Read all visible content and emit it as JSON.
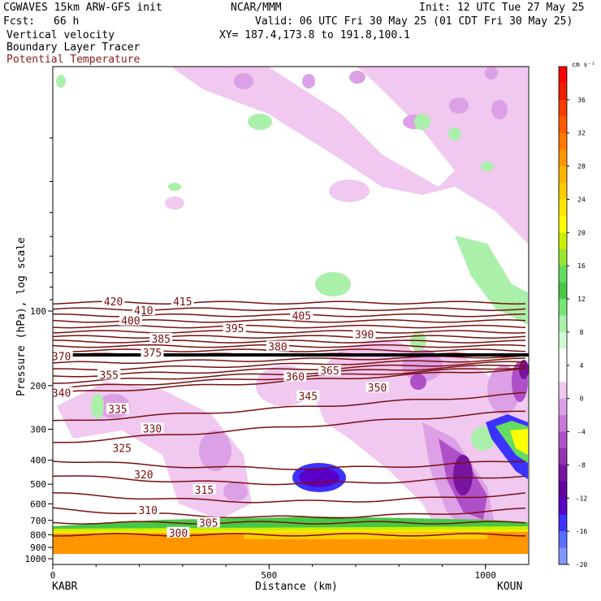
{
  "header": {
    "model": "CGWAVES 15km ARW-GFS init",
    "org": "NCAR/MMM",
    "init": "Init: 12 UTC Tue 27 May 25",
    "fcst_label": "Fcst:",
    "fcst_value": "66 h",
    "valid": "Valid: 06 UTC Fri 30 May 25 (01 CDT Fri 30 May 25)",
    "field1": "Vertical velocity",
    "field2": "Boundary Layer Tracer",
    "field3": "Potential Temperature",
    "xy": "XY= 187.4,173.8 to 191.8,100.1"
  },
  "chart_data": {
    "type": "cross-section",
    "xlabel": "Distance (km)",
    "ylabel": "Pressure (hPa), log scale",
    "x_ticks": [
      "0",
      "500",
      "1000"
    ],
    "x_endpoints": [
      "KABR",
      "KOUN"
    ],
    "xlim": [
      0,
      1100
    ],
    "ylim_hpa": [
      1000,
      10
    ],
    "y_log": true,
    "y_ticks": [
      "100",
      "200",
      "300",
      "400",
      "500",
      "600",
      "700",
      "800",
      "900",
      "1000"
    ],
    "colorbar": {
      "unit": "cm s⁻¹",
      "labels": [
        "36",
        "32",
        "28",
        "24",
        "20",
        "16",
        "12",
        "8",
        "4",
        "0",
        "-4",
        "-8",
        "-12",
        "-16",
        "-20"
      ],
      "colors": [
        "#ff0000",
        "#ee1e00",
        "#ff3c00",
        "#ff5a00",
        "#ff7800",
        "#ff9600",
        "#ffb400",
        "#ffcc00",
        "#ffe600",
        "#ffff00",
        "#c8f000",
        "#96e632",
        "#64dc64",
        "#46c846",
        "#78e678",
        "#aaf0aa",
        "#d2fad2",
        "#ffffff",
        "#ffffff",
        "#f0c8f0",
        "#dca0e6",
        "#c878dc",
        "#b050c8",
        "#9632b4",
        "#7814a0",
        "#6400a0",
        "#5a00c8",
        "#3c32ff",
        "#5a6eff",
        "#8296ff"
      ]
    },
    "theta_labels": [
      {
        "v": "420",
        "x": 140,
        "p": 92
      },
      {
        "v": "415",
        "x": 300,
        "p": 92
      },
      {
        "v": "410",
        "x": 210,
        "p": 100
      },
      {
        "v": "405",
        "x": 575,
        "p": 105
      },
      {
        "v": "400",
        "x": 180,
        "p": 110
      },
      {
        "v": "395",
        "x": 420,
        "p": 118
      },
      {
        "v": "390",
        "x": 720,
        "p": 125
      },
      {
        "v": "385",
        "x": 250,
        "p": 130
      },
      {
        "v": "380",
        "x": 520,
        "p": 140
      },
      {
        "v": "375",
        "x": 230,
        "p": 148
      },
      {
        "v": "370",
        "x": 20,
        "p": 153
      },
      {
        "v": "365",
        "x": 640,
        "p": 175
      },
      {
        "v": "360",
        "x": 560,
        "p": 185
      },
      {
        "v": "355",
        "x": 130,
        "p": 182
      },
      {
        "v": "350",
        "x": 750,
        "p": 205
      },
      {
        "v": "345",
        "x": 590,
        "p": 222
      },
      {
        "v": "340",
        "x": 20,
        "p": 215
      },
      {
        "v": "335",
        "x": 150,
        "p": 250
      },
      {
        "v": "330",
        "x": 230,
        "p": 300
      },
      {
        "v": "325",
        "x": 160,
        "p": 360
      },
      {
        "v": "320",
        "x": 210,
        "p": 460
      },
      {
        "v": "315",
        "x": 350,
        "p": 530
      },
      {
        "v": "310",
        "x": 220,
        "p": 640
      },
      {
        "v": "305",
        "x": 360,
        "p": 720
      },
      {
        "v": "300",
        "x": 290,
        "p": 790
      }
    ]
  }
}
